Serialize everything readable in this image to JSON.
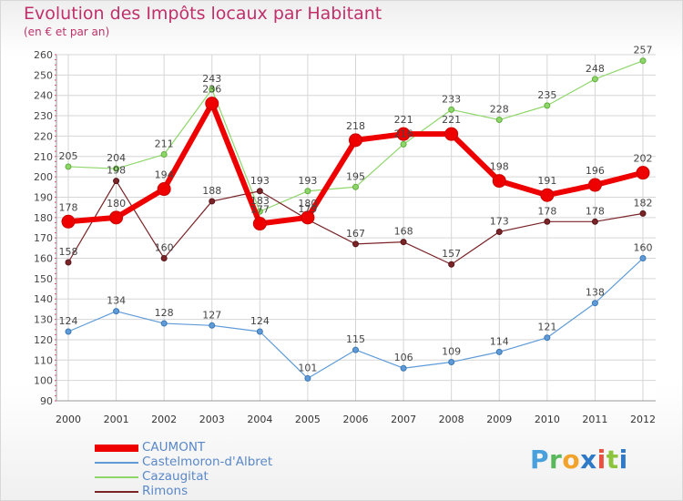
{
  "title": "Evolution des Impôts locaux par Habitant",
  "subtitle": "(en € et par an)",
  "logo": "Proxiti",
  "chart_data": {
    "type": "line",
    "title": "Evolution des Impôts locaux par Habitant",
    "subtitle": "(en € et par an)",
    "xlabel": "",
    "ylabel": "",
    "ylim": [
      90,
      260
    ],
    "yticks": [
      90,
      100,
      110,
      120,
      130,
      140,
      150,
      160,
      170,
      180,
      190,
      200,
      210,
      220,
      230,
      240,
      250,
      260
    ],
    "x": [
      "2000",
      "2001",
      "2002",
      "2003",
      "2004",
      "2005",
      "2006",
      "2007",
      "2008",
      "2009",
      "2010",
      "2011",
      "2012"
    ],
    "grid": true,
    "legend_position": "bottom-left",
    "series": [
      {
        "name": "Castelmoron-d'Albret",
        "color": "#5f9bd8",
        "values": [
          124,
          134,
          128,
          127,
          124,
          101,
          115,
          106,
          109,
          114,
          121,
          138,
          160
        ]
      },
      {
        "name": "Cazaugitat",
        "color": "#8fd66a",
        "values": [
          205,
          204,
          211,
          243,
          183,
          193,
          195,
          216,
          233,
          228,
          235,
          248,
          257
        ]
      },
      {
        "name": "Rimons",
        "color": "#7a2428",
        "values": [
          158,
          198,
          160,
          188,
          193,
          179,
          167,
          168,
          157,
          173,
          178,
          178,
          182
        ]
      },
      {
        "name": "CAUMONT",
        "color": "#ee0000",
        "values": [
          178,
          180,
          194,
          236,
          177,
          180,
          218,
          221,
          221,
          198,
          191,
          196,
          202
        ]
      }
    ]
  },
  "legend": [
    {
      "name": "CAUMONT",
      "color": "#ee0000"
    },
    {
      "name": "Castelmoron-d'Albret",
      "color": "#5f9bd8"
    },
    {
      "name": "Cazaugitat",
      "color": "#8fd66a"
    },
    {
      "name": "Rimons",
      "color": "#7a2428"
    }
  ]
}
